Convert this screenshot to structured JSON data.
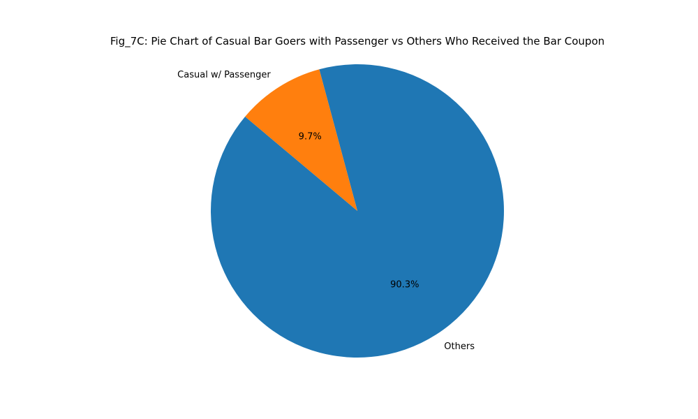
{
  "chart_data": {
    "type": "pie",
    "title": "Fig_7C: Pie Chart of Casual Bar Goers with Passenger vs Others Who Received the Bar Coupon",
    "start_angle_deg": 140,
    "direction": "counterclockwise",
    "legend": "none",
    "slices": [
      {
        "label": "Others",
        "value": 90.3,
        "pct_label": "90.3%",
        "color": "#1f77b4"
      },
      {
        "label": "Casual w/ Passenger",
        "value": 9.7,
        "pct_label": "9.7%",
        "color": "#ff7f0e"
      }
    ]
  }
}
